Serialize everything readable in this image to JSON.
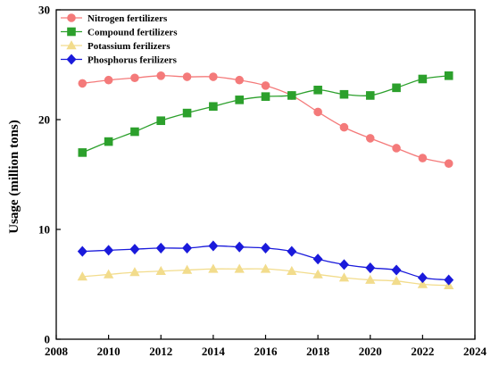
{
  "chart_data": {
    "type": "line",
    "title": "",
    "xlabel": "",
    "ylabel": "Usage (million tons)",
    "xlim": [
      2008,
      2024
    ],
    "ylim": [
      0,
      30
    ],
    "xticks": [
      2008,
      2010,
      2012,
      2014,
      2016,
      2018,
      2020,
      2022,
      2024
    ],
    "yticks": [
      0,
      10,
      20,
      30
    ],
    "grid": false,
    "legend_position": "top-left",
    "x": [
      2009,
      2010,
      2011,
      2012,
      2013,
      2014,
      2015,
      2016,
      2017,
      2018,
      2019,
      2020,
      2021,
      2022,
      2023
    ],
    "series": [
      {
        "name": "Nitrogen fertilizers",
        "color": "#f47a7a",
        "marker": "circle",
        "values": [
          23.3,
          23.6,
          23.8,
          24.0,
          23.9,
          23.9,
          23.6,
          23.1,
          22.2,
          20.7,
          19.3,
          18.3,
          17.4,
          16.5,
          16.0
        ]
      },
      {
        "name": "Compound fertilizers",
        "color": "#2ca02c",
        "marker": "square",
        "values": [
          17.0,
          18.0,
          18.9,
          19.9,
          20.6,
          21.2,
          21.8,
          22.1,
          22.2,
          22.7,
          22.3,
          22.2,
          22.9,
          23.7,
          24.0
        ]
      },
      {
        "name": "Potassium ferilizers",
        "color": "#f2dc8c",
        "marker": "triangle",
        "values": [
          5.7,
          5.9,
          6.1,
          6.2,
          6.3,
          6.4,
          6.4,
          6.4,
          6.2,
          5.9,
          5.6,
          5.4,
          5.3,
          5.0,
          4.9
        ]
      },
      {
        "name": "Phosphorus ferilizers",
        "color": "#1a1adb",
        "marker": "diamond",
        "values": [
          8.0,
          8.1,
          8.2,
          8.3,
          8.3,
          8.5,
          8.4,
          8.3,
          8.0,
          7.3,
          6.8,
          6.5,
          6.3,
          5.6,
          5.4
        ]
      }
    ]
  }
}
